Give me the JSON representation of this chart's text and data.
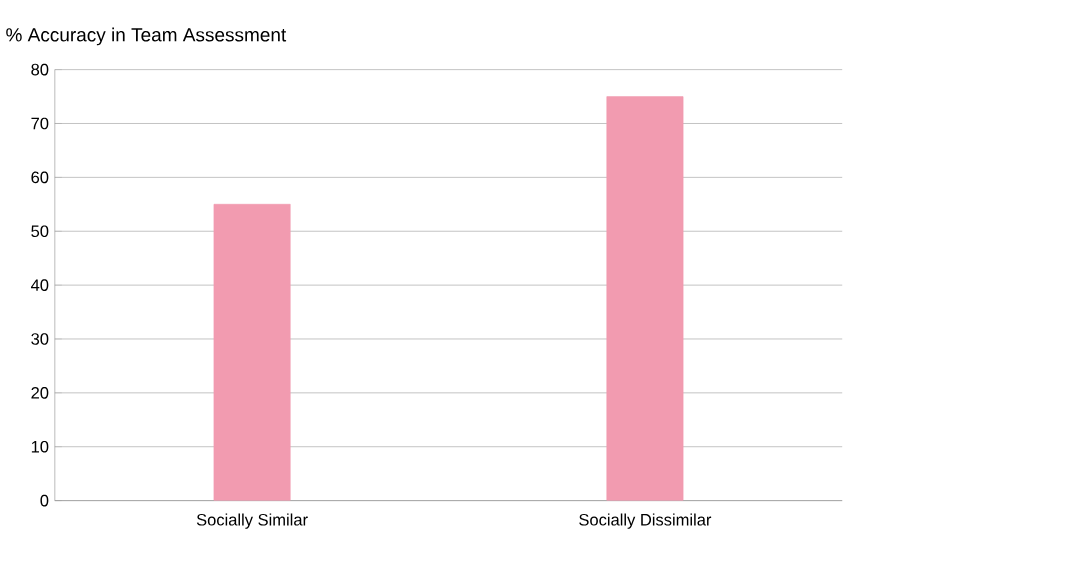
{
  "chart_data": {
    "type": "bar",
    "ylabel": "% Accuracy in Team Assessment",
    "categories": [
      "Socially Similar",
      "Socially Dissimilar"
    ],
    "values": [
      55,
      75
    ],
    "color": "#f29bb0",
    "ylim": [
      0,
      80
    ],
    "yticks": [
      0,
      10,
      20,
      30,
      40,
      50,
      60,
      70,
      80
    ],
    "grid": "y"
  }
}
